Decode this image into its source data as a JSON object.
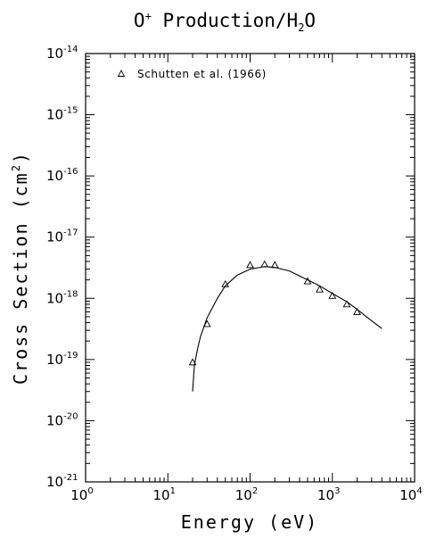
{
  "chart_data": {
    "type": "scatter",
    "title": {
      "base": "O",
      "sup": "+",
      "rest": " Production/H",
      "sub": "2",
      "tail": "O"
    },
    "xlabel": "Energy (eV)",
    "ylabel": {
      "base": "Cross Section (cm",
      "sup": "2",
      "tail": ")"
    },
    "xscale": "log",
    "yscale": "log",
    "xlim": [
      1,
      10000
    ],
    "ylim": [
      1e-21,
      1e-14
    ],
    "x_ticks": [
      {
        "value": 1,
        "base": "10",
        "exp": "0"
      },
      {
        "value": 10,
        "base": "10",
        "exp": "1"
      },
      {
        "value": 100,
        "base": "10",
        "exp": "2"
      },
      {
        "value": 1000,
        "base": "10",
        "exp": "3"
      },
      {
        "value": 10000,
        "base": "10",
        "exp": "4"
      }
    ],
    "y_ticks": [
      {
        "value": 1e-21,
        "base": "10",
        "exp": "-21"
      },
      {
        "value": 1e-20,
        "base": "10",
        "exp": "-20"
      },
      {
        "value": 1e-19,
        "base": "10",
        "exp": "-19"
      },
      {
        "value": 1e-18,
        "base": "10",
        "exp": "-18"
      },
      {
        "value": 1e-17,
        "base": "10",
        "exp": "-17"
      },
      {
        "value": 1e-16,
        "base": "10",
        "exp": "-16"
      },
      {
        "value": 1e-15,
        "base": "10",
        "exp": "-15"
      },
      {
        "value": 1e-14,
        "base": "10",
        "exp": "-14"
      }
    ],
    "legend": {
      "position": "top-left",
      "marker": "triangle"
    },
    "series": [
      {
        "name": "Schutten et al. (1966)",
        "kind": "points",
        "marker": "triangle",
        "x": [
          20,
          30,
          50,
          100,
          150,
          200,
          500,
          700,
          1000,
          1500,
          2000
        ],
        "y": [
          9e-20,
          3.8e-19,
          1.7e-18,
          3.5e-18,
          3.6e-18,
          3.5e-18,
          1.9e-18,
          1.4e-18,
          1.1e-18,
          8e-19,
          6e-19
        ]
      },
      {
        "kind": "fit-line",
        "x": [
          20,
          21,
          23,
          25,
          30,
          40,
          50,
          70,
          100,
          150,
          200,
          300,
          500,
          700,
          1000,
          1500,
          2000,
          3000,
          4000
        ],
        "y": [
          3e-20,
          8e-20,
          1.5e-19,
          2.4e-19,
          4.8e-19,
          1e-18,
          1.6e-18,
          2.4e-18,
          3e-18,
          3.3e-18,
          3.2e-18,
          2.8e-18,
          2e-18,
          1.6e-18,
          1.2e-18,
          8.8e-19,
          6.6e-19,
          4.3e-19,
          3.2e-19
        ]
      }
    ]
  }
}
